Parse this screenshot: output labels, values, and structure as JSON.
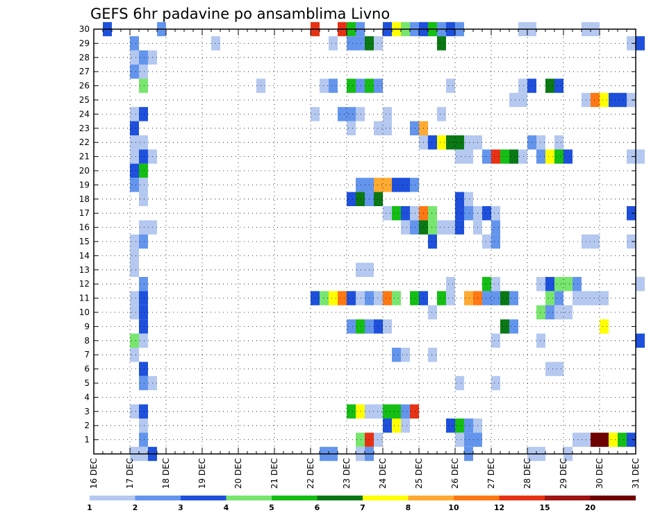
{
  "chart_data": {
    "type": "heatmap",
    "title": "GEFS 6hr padavine po ansamblima Livno",
    "xlabel": "",
    "ylabel": "",
    "x_ticks": [
      "16 DEC",
      "17 DEC",
      "18 DEC",
      "19 DEC",
      "20 DEC",
      "21 DEC",
      "22 DEC",
      "23 DEC",
      "24 DEC",
      "25 DEC",
      "26 DEC",
      "27 DEC",
      "28 DEC",
      "29 DEC",
      "30 DEC",
      "31 DEC"
    ],
    "y_ticks": [
      "1",
      "2",
      "3",
      "4",
      "5",
      "6",
      "7",
      "8",
      "9",
      "10",
      "11",
      "12",
      "13",
      "14",
      "15",
      "16",
      "17",
      "18",
      "19",
      "20",
      "21",
      "22",
      "23",
      "24",
      "25",
      "26",
      "27",
      "28",
      "29",
      "30"
    ],
    "xlim": [
      0,
      60
    ],
    "ylim": [
      0,
      30
    ],
    "grid": true,
    "legend": {
      "placement": "bottom",
      "labels": [
        "1",
        "2",
        "3",
        "4",
        "5",
        "6",
        "7",
        "8",
        "10",
        "12",
        "15",
        "20"
      ],
      "colors": [
        "#b4c8f0",
        "#6495ed",
        "#1e50dc",
        "#78e66e",
        "#14be14",
        "#0a7814",
        "#ffff00",
        "#ffaa32",
        "#ff7814",
        "#e63214",
        "#a01414",
        "#6e0000"
      ]
    },
    "cells": [
      [
        1,
        30,
        2
      ],
      [
        7,
        30,
        1
      ],
      [
        24,
        30,
        9
      ],
      [
        27,
        30,
        9
      ],
      [
        28,
        30,
        4
      ],
      [
        29,
        30,
        1
      ],
      [
        32,
        30,
        2
      ],
      [
        33,
        30,
        6
      ],
      [
        34,
        30,
        3
      ],
      [
        35,
        30,
        1
      ],
      [
        36,
        30,
        2
      ],
      [
        37,
        30,
        4
      ],
      [
        38,
        30,
        1
      ],
      [
        39,
        30,
        2
      ],
      [
        40,
        30,
        1
      ],
      [
        47,
        30,
        0
      ],
      [
        48,
        30,
        0
      ],
      [
        54,
        30,
        0
      ],
      [
        55,
        30,
        0
      ],
      [
        4,
        29,
        1
      ],
      [
        13,
        29,
        0
      ],
      [
        26,
        29,
        0
      ],
      [
        28,
        29,
        1
      ],
      [
        29,
        29,
        1
      ],
      [
        30,
        29,
        5
      ],
      [
        31,
        29,
        0
      ],
      [
        38,
        29,
        5
      ],
      [
        59,
        29,
        0
      ],
      [
        60,
        29,
        2
      ],
      [
        4,
        28,
        0
      ],
      [
        5,
        28,
        1
      ],
      [
        6,
        28,
        0
      ],
      [
        4,
        27,
        1
      ],
      [
        5,
        27,
        0
      ],
      [
        5,
        26,
        3
      ],
      [
        18,
        26,
        0
      ],
      [
        25,
        26,
        0
      ],
      [
        26,
        26,
        1
      ],
      [
        28,
        26,
        4
      ],
      [
        29,
        26,
        1
      ],
      [
        30,
        26,
        4
      ],
      [
        31,
        26,
        1
      ],
      [
        39,
        26,
        0
      ],
      [
        47,
        26,
        0
      ],
      [
        48,
        26,
        2
      ],
      [
        50,
        26,
        5
      ],
      [
        51,
        26,
        2
      ],
      [
        46,
        25,
        0
      ],
      [
        47,
        25,
        0
      ],
      [
        54,
        25,
        0
      ],
      [
        55,
        25,
        8
      ],
      [
        56,
        25,
        6
      ],
      [
        57,
        25,
        2
      ],
      [
        58,
        25,
        2
      ],
      [
        59,
        25,
        0
      ],
      [
        4,
        24,
        0
      ],
      [
        5,
        24,
        2
      ],
      [
        24,
        24,
        0
      ],
      [
        27,
        24,
        1
      ],
      [
        28,
        24,
        1
      ],
      [
        29,
        24,
        0
      ],
      [
        32,
        24,
        0
      ],
      [
        38,
        24,
        0
      ],
      [
        4,
        23,
        2
      ],
      [
        28,
        23,
        0
      ],
      [
        31,
        23,
        0
      ],
      [
        32,
        23,
        0
      ],
      [
        35,
        23,
        1
      ],
      [
        36,
        23,
        7
      ],
      [
        4,
        22,
        0
      ],
      [
        5,
        22,
        0
      ],
      [
        36,
        22,
        0
      ],
      [
        37,
        22,
        2
      ],
      [
        38,
        22,
        6
      ],
      [
        39,
        22,
        5
      ],
      [
        40,
        22,
        5
      ],
      [
        41,
        22,
        0
      ],
      [
        42,
        22,
        0
      ],
      [
        48,
        22,
        1
      ],
      [
        49,
        22,
        0
      ],
      [
        51,
        22,
        0
      ],
      [
        4,
        21,
        0
      ],
      [
        5,
        21,
        2
      ],
      [
        6,
        21,
        0
      ],
      [
        40,
        21,
        0
      ],
      [
        41,
        21,
        0
      ],
      [
        43,
        21,
        1
      ],
      [
        44,
        21,
        9
      ],
      [
        45,
        21,
        4
      ],
      [
        46,
        21,
        5
      ],
      [
        47,
        21,
        0
      ],
      [
        49,
        21,
        1
      ],
      [
        50,
        21,
        6
      ],
      [
        51,
        21,
        4
      ],
      [
        52,
        21,
        2
      ],
      [
        59,
        21,
        0
      ],
      [
        60,
        21,
        0
      ],
      [
        4,
        20,
        2
      ],
      [
        5,
        20,
        4
      ],
      [
        4,
        19,
        1
      ],
      [
        5,
        19,
        0
      ],
      [
        29,
        19,
        1
      ],
      [
        30,
        19,
        1
      ],
      [
        31,
        19,
        7
      ],
      [
        32,
        19,
        7
      ],
      [
        33,
        19,
        2
      ],
      [
        34,
        19,
        2
      ],
      [
        35,
        19,
        1
      ],
      [
        5,
        18,
        0
      ],
      [
        28,
        18,
        2
      ],
      [
        29,
        18,
        5
      ],
      [
        30,
        18,
        1
      ],
      [
        31,
        18,
        5
      ],
      [
        40,
        18,
        2
      ],
      [
        41,
        18,
        0
      ],
      [
        32,
        17,
        0
      ],
      [
        33,
        17,
        4
      ],
      [
        34,
        17,
        2
      ],
      [
        35,
        17,
        0
      ],
      [
        36,
        17,
        8
      ],
      [
        37,
        17,
        3
      ],
      [
        40,
        17,
        2
      ],
      [
        41,
        17,
        1
      ],
      [
        42,
        17,
        0
      ],
      [
        43,
        17,
        2
      ],
      [
        44,
        17,
        0
      ],
      [
        59,
        17,
        2
      ],
      [
        5,
        16,
        0
      ],
      [
        6,
        16,
        0
      ],
      [
        34,
        16,
        0
      ],
      [
        35,
        16,
        1
      ],
      [
        36,
        16,
        5
      ],
      [
        37,
        16,
        3
      ],
      [
        38,
        16,
        0
      ],
      [
        39,
        16,
        0
      ],
      [
        40,
        16,
        2
      ],
      [
        42,
        16,
        0
      ],
      [
        44,
        16,
        1
      ],
      [
        4,
        15,
        0
      ],
      [
        5,
        15,
        1
      ],
      [
        37,
        15,
        2
      ],
      [
        43,
        15,
        0
      ],
      [
        44,
        15,
        1
      ],
      [
        54,
        15,
        0
      ],
      [
        55,
        15,
        0
      ],
      [
        59,
        15,
        0
      ],
      [
        4,
        14,
        0
      ],
      [
        4,
        13,
        0
      ],
      [
        29,
        13,
        0
      ],
      [
        30,
        13,
        0
      ],
      [
        5,
        12,
        1
      ],
      [
        39,
        12,
        0
      ],
      [
        43,
        12,
        4
      ],
      [
        44,
        12,
        0
      ],
      [
        49,
        12,
        0
      ],
      [
        50,
        12,
        2
      ],
      [
        51,
        12,
        3
      ],
      [
        52,
        12,
        3
      ],
      [
        53,
        12,
        1
      ],
      [
        60,
        12,
        0
      ],
      [
        4,
        11,
        0
      ],
      [
        5,
        11,
        2
      ],
      [
        24,
        11,
        2
      ],
      [
        25,
        11,
        3
      ],
      [
        26,
        11,
        6
      ],
      [
        27,
        11,
        8
      ],
      [
        28,
        11,
        2
      ],
      [
        29,
        11,
        0
      ],
      [
        30,
        11,
        1
      ],
      [
        31,
        11,
        0
      ],
      [
        32,
        11,
        8
      ],
      [
        33,
        11,
        3
      ],
      [
        35,
        11,
        4
      ],
      [
        36,
        11,
        2
      ],
      [
        38,
        11,
        4
      ],
      [
        39,
        11,
        0
      ],
      [
        41,
        11,
        7
      ],
      [
        42,
        11,
        8
      ],
      [
        43,
        11,
        1
      ],
      [
        44,
        11,
        1
      ],
      [
        45,
        11,
        5
      ],
      [
        46,
        11,
        1
      ],
      [
        50,
        11,
        3
      ],
      [
        51,
        11,
        1
      ],
      [
        53,
        11,
        0
      ],
      [
        54,
        11,
        0
      ],
      [
        55,
        11,
        0
      ],
      [
        56,
        11,
        0
      ],
      [
        4,
        10,
        0
      ],
      [
        5,
        10,
        2
      ],
      [
        37,
        10,
        0
      ],
      [
        49,
        10,
        3
      ],
      [
        50,
        10,
        1
      ],
      [
        51,
        10,
        0
      ],
      [
        52,
        10,
        0
      ],
      [
        5,
        9,
        2
      ],
      [
        28,
        9,
        1
      ],
      [
        29,
        9,
        4
      ],
      [
        30,
        9,
        1
      ],
      [
        31,
        9,
        2
      ],
      [
        32,
        9,
        0
      ],
      [
        45,
        9,
        5
      ],
      [
        46,
        9,
        1
      ],
      [
        56,
        9,
        6
      ],
      [
        4,
        8,
        3
      ],
      [
        5,
        8,
        0
      ],
      [
        44,
        8,
        0
      ],
      [
        49,
        8,
        0
      ],
      [
        60,
        8,
        2
      ],
      [
        4,
        7,
        0
      ],
      [
        33,
        7,
        1
      ],
      [
        34,
        7,
        0
      ],
      [
        37,
        7,
        0
      ],
      [
        5,
        6,
        2
      ],
      [
        50,
        6,
        0
      ],
      [
        51,
        6,
        0
      ],
      [
        5,
        5,
        1
      ],
      [
        6,
        5,
        0
      ],
      [
        40,
        5,
        0
      ],
      [
        44,
        5,
        0
      ],
      [
        4,
        3,
        0
      ],
      [
        5,
        3,
        2
      ],
      [
        28,
        3,
        4
      ],
      [
        29,
        3,
        6
      ],
      [
        30,
        3,
        0
      ],
      [
        31,
        3,
        0
      ],
      [
        32,
        3,
        4
      ],
      [
        33,
        3,
        4
      ],
      [
        34,
        3,
        1
      ],
      [
        35,
        3,
        9
      ],
      [
        5,
        2,
        0
      ],
      [
        32,
        2,
        2
      ],
      [
        33,
        2,
        6
      ],
      [
        34,
        2,
        0
      ],
      [
        39,
        2,
        2
      ],
      [
        40,
        2,
        4
      ],
      [
        41,
        2,
        1
      ],
      [
        42,
        2,
        0
      ],
      [
        5,
        1,
        1
      ],
      [
        29,
        1,
        3
      ],
      [
        30,
        1,
        9
      ],
      [
        31,
        1,
        0
      ],
      [
        40,
        1,
        0
      ],
      [
        41,
        1,
        1
      ],
      [
        42,
        1,
        1
      ],
      [
        53,
        1,
        0
      ],
      [
        54,
        1,
        0
      ],
      [
        55,
        1,
        11
      ],
      [
        56,
        1,
        11
      ],
      [
        57,
        1,
        6
      ],
      [
        58,
        1,
        4
      ],
      [
        59,
        1,
        2
      ],
      [
        4,
        0,
        0
      ],
      [
        5,
        0,
        0
      ],
      [
        6,
        0,
        2
      ],
      [
        25,
        0,
        1
      ],
      [
        26,
        0,
        1
      ],
      [
        29,
        0,
        0
      ],
      [
        30,
        0,
        1
      ],
      [
        41,
        0,
        1
      ],
      [
        48,
        0,
        0
      ],
      [
        49,
        0,
        0
      ],
      [
        52,
        0,
        0
      ]
    ]
  }
}
